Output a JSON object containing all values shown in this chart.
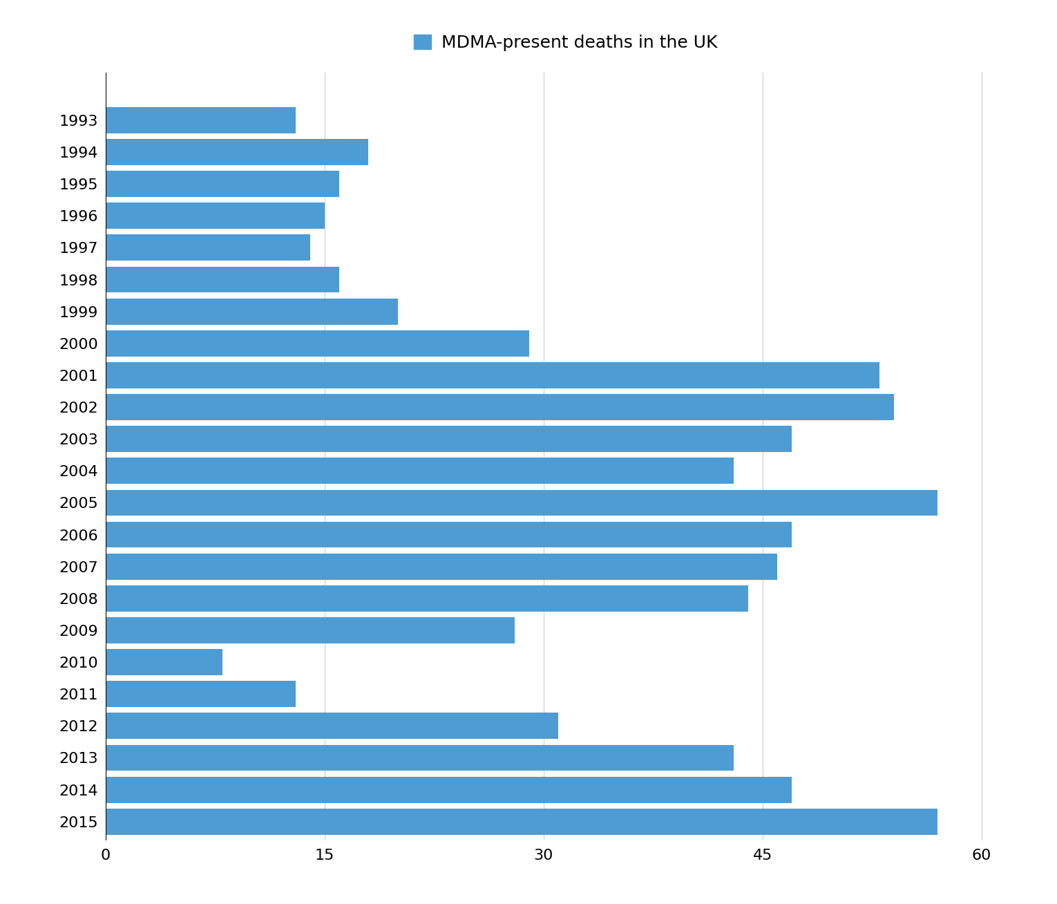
{
  "years": [
    "1993",
    "1994",
    "1995",
    "1996",
    "1997",
    "1998",
    "1999",
    "2000",
    "2001",
    "2002",
    "2003",
    "2004",
    "2005",
    "2006",
    "2007",
    "2008",
    "2009",
    "2010",
    "2011",
    "2012",
    "2013",
    "2014",
    "2015"
  ],
  "values": [
    13,
    18,
    16,
    15,
    14,
    16,
    20,
    29,
    53,
    54,
    47,
    43,
    57,
    47,
    46,
    44,
    28,
    8,
    13,
    31,
    43,
    47,
    57
  ],
  "bar_color": "#4e9cd4",
  "title": "MDMA-present deaths in the UK",
  "xlim": [
    0,
    63
  ],
  "xticks": [
    0,
    15,
    30,
    45,
    60
  ],
  "background_color": "#ffffff",
  "grid_color": "#cccccc",
  "title_fontsize": 18,
  "tick_fontsize": 16,
  "bar_height": 0.82
}
